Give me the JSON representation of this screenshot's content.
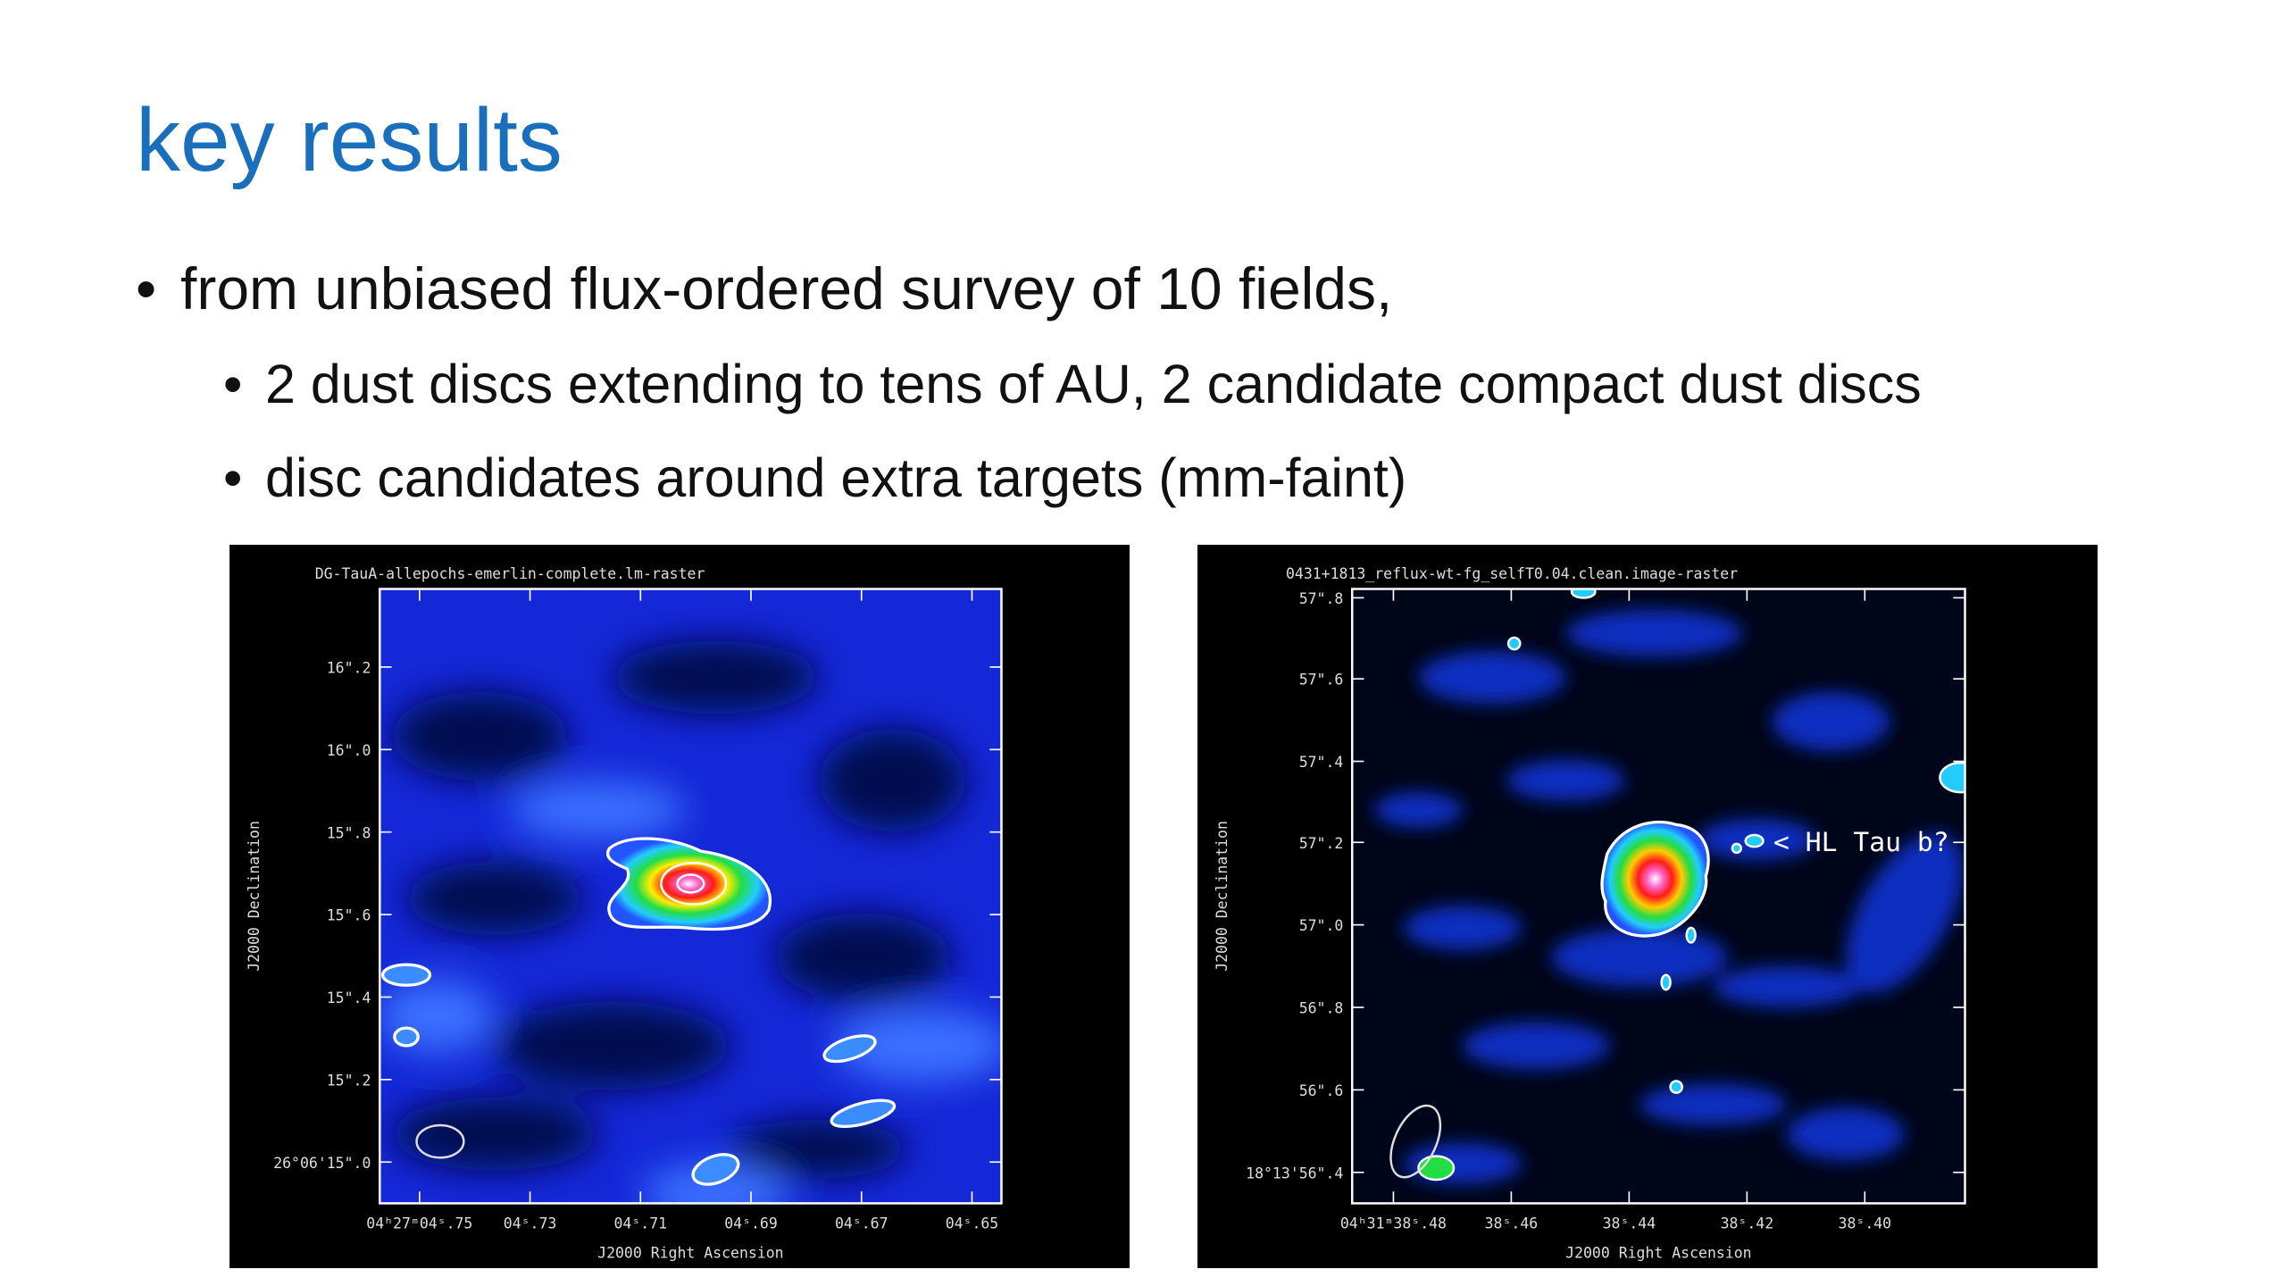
{
  "slide": {
    "title": "key results",
    "bullets": [
      {
        "text": "from unbiased flux-ordered survey of 10 fields,",
        "sub": [
          "2 dust discs extending to tens of AU, 2 candidate compact dust discs",
          "disc candidates around extra targets (mm-faint)"
        ]
      }
    ],
    "figures": [
      {
        "title": "DG-TauA-allepochs-emerlin-complete.lm-raster",
        "ylabel": "J2000 Declination",
        "xlabel": "J2000 Right Ascension",
        "yticks": [
          "16\".2",
          "16\".0",
          "15\".8",
          "15\".6",
          "15\".4",
          "15\".2",
          "26°06'15\".0"
        ],
        "xticks": [
          "04ʰ27ᵐ04ˢ.75",
          "04ˢ.73",
          "04ˢ.71",
          "04ˢ.69",
          "04ˢ.67",
          "04ˢ.65"
        ]
      },
      {
        "title": "0431+1813_reflux-wt-fg_selfT0.04.clean.image-raster",
        "ylabel": "J2000 Declination",
        "xlabel": "J2000 Right Ascension",
        "yticks": [
          "57\".8",
          "57\".6",
          "57\".4",
          "57\".2",
          "57\".0",
          "56\".8",
          "56\".6",
          "18°13'56\".4"
        ],
        "xticks": [
          "04ʰ31ᵐ38ˢ.48",
          "38ˢ.46",
          "38ˢ.44",
          "38ˢ.42",
          "38ˢ.40"
        ],
        "annotation": "< HL Tau b?"
      }
    ]
  }
}
